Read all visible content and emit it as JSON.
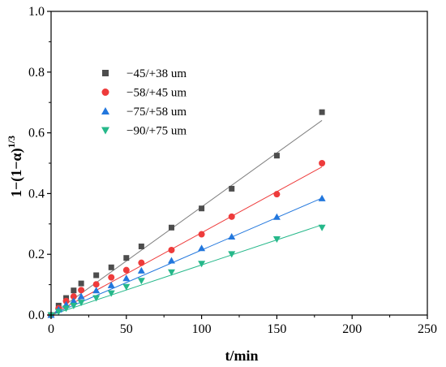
{
  "chart_data": {
    "type": "scatter",
    "xlabel": "t/min",
    "ylabel": "1−(1−α)",
    "ylabel_superscript": "1/3",
    "xlim": [
      0,
      250
    ],
    "ylim": [
      0,
      1.0
    ],
    "xticks": [
      0,
      50,
      100,
      150,
      200,
      250
    ],
    "yticks": [
      0.0,
      0.2,
      0.4,
      0.6,
      0.8,
      1.0
    ],
    "legend_position": "upper-left",
    "grid": false,
    "x": [
      0,
      5,
      10,
      15,
      20,
      30,
      40,
      50,
      60,
      80,
      100,
      120,
      150,
      180
    ],
    "series": [
      {
        "name": "−45/+38 um",
        "marker": "square",
        "color": "#4d4d4d",
        "fit_color": "#7f7f7f",
        "values": [
          0,
          0.031,
          0.056,
          0.081,
          0.104,
          0.131,
          0.157,
          0.188,
          0.226,
          0.288,
          0.351,
          0.416,
          0.525,
          0.668
        ],
        "fit": {
          "slope": 0.00356,
          "intercept": 0
        }
      },
      {
        "name": "−58/+45 um",
        "marker": "circle",
        "color": "#ee3b3b",
        "fit_color": "#ee3b3b",
        "values": [
          0,
          0.022,
          0.046,
          0.061,
          0.082,
          0.101,
          0.124,
          0.148,
          0.172,
          0.214,
          0.266,
          0.324,
          0.398,
          0.5
        ],
        "fit": {
          "slope": 0.00271,
          "intercept": 0
        }
      },
      {
        "name": "−75/+58 um",
        "marker": "triangle-up",
        "color": "#2277dd",
        "fit_color": "#2277dd",
        "values": [
          0,
          0.018,
          0.034,
          0.046,
          0.061,
          0.081,
          0.098,
          0.121,
          0.146,
          0.179,
          0.22,
          0.258,
          0.323,
          0.384
        ],
        "fit": {
          "slope": 0.00214,
          "intercept": 0
        }
      },
      {
        "name": "−90/+75 um",
        "marker": "triangle-down",
        "color": "#26b88a",
        "fit_color": "#26b88a",
        "values": [
          0,
          0.011,
          0.022,
          0.031,
          0.041,
          0.056,
          0.072,
          0.093,
          0.113,
          0.141,
          0.169,
          0.201,
          0.25,
          0.288
        ],
        "fit": {
          "slope": 0.00165,
          "intercept": 0
        }
      }
    ]
  }
}
